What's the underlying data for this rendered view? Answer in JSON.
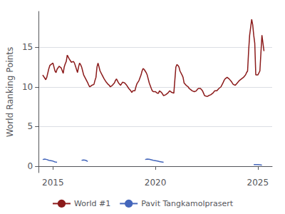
{
  "chart_data": {
    "type": "line",
    "ylabel": "World Ranking Points",
    "xlim": [
      2014.3,
      2025.7
    ],
    "ylim": [
      -0.8,
      19.5
    ],
    "xticks": [
      2015,
      2020,
      2025
    ],
    "yticks": [
      0,
      5,
      10,
      15
    ],
    "grid": true,
    "legend": "bottom",
    "series": [
      {
        "name": "World #1",
        "color": "#8b1a1a",
        "x": [
          2014.5,
          2014.6,
          2014.65,
          2014.7,
          2014.8,
          2014.85,
          2014.9,
          2015.0,
          2015.05,
          2015.1,
          2015.15,
          2015.2,
          2015.3,
          2015.4,
          2015.5,
          2015.55,
          2015.6,
          2015.65,
          2015.7,
          2015.8,
          2015.85,
          2015.9,
          2016.0,
          2016.05,
          2016.1,
          2016.15,
          2016.2,
          2016.25,
          2016.3,
          2016.35,
          2016.4,
          2016.45,
          2016.5,
          2016.6,
          2016.7,
          2016.75,
          2016.8,
          2016.85,
          2016.9,
          2017.0,
          2017.05,
          2017.1,
          2017.15,
          2017.2,
          2017.3,
          2017.4,
          2017.5,
          2017.6,
          2017.7,
          2017.75,
          2017.8,
          2017.9,
          2018.0,
          2018.05,
          2018.1,
          2018.2,
          2018.3,
          2018.35,
          2018.4,
          2018.5,
          2018.6,
          2018.7,
          2018.8,
          2018.85,
          2018.9,
          2019.0,
          2019.05,
          2019.1,
          2019.2,
          2019.3,
          2019.35,
          2019.4,
          2019.45,
          2019.5,
          2019.55,
          2019.6,
          2019.7,
          2019.8,
          2019.85,
          2019.9,
          2020.0,
          2020.05,
          2020.1,
          2020.15,
          2020.2,
          2020.3,
          2020.4,
          2020.5,
          2020.6,
          2020.7,
          2020.8,
          2020.9,
          2021.0,
          2021.05,
          2021.1,
          2021.15,
          2021.2,
          2021.3,
          2021.35,
          2021.4,
          2021.5,
          2021.6,
          2021.65,
          2021.7,
          2021.8,
          2021.9,
          2022.0,
          2022.05,
          2022.1,
          2022.2,
          2022.3,
          2022.35,
          2022.4,
          2022.5,
          2022.55,
          2022.6,
          2022.7,
          2022.8,
          2022.9,
          2023.0,
          2023.1,
          2023.2,
          2023.3,
          2023.35,
          2023.4,
          2023.5,
          2023.6,
          2023.7,
          2023.75,
          2023.8,
          2023.9,
          2024.0,
          2024.1,
          2024.2,
          2024.3,
          2024.4,
          2024.45,
          2024.5,
          2024.55,
          2024.6,
          2024.65,
          2024.7,
          2024.75,
          2024.8,
          2024.85,
          2024.9,
          2025.0,
          2025.1,
          2025.2,
          2025.3
        ],
        "values": [
          11.5,
          11.1,
          10.9,
          11.2,
          12.3,
          12.7,
          12.8,
          13.0,
          12.5,
          12.0,
          11.8,
          12.2,
          12.6,
          12.4,
          11.7,
          12.5,
          12.9,
          13.2,
          14.0,
          13.5,
          13.3,
          13.1,
          13.2,
          13.0,
          12.6,
          12.2,
          11.8,
          12.5,
          13.0,
          12.8,
          12.5,
          12.0,
          11.5,
          11.0,
          10.5,
          10.2,
          10.0,
          10.1,
          10.2,
          10.3,
          10.8,
          11.2,
          12.5,
          13.0,
          12.0,
          11.5,
          11.0,
          10.6,
          10.3,
          10.2,
          10.0,
          10.2,
          10.5,
          10.8,
          11.0,
          10.5,
          10.2,
          10.4,
          10.6,
          10.5,
          10.2,
          9.8,
          9.5,
          9.3,
          9.5,
          9.5,
          10.0,
          10.4,
          10.8,
          11.5,
          12.0,
          12.3,
          12.2,
          12.0,
          11.8,
          11.5,
          10.5,
          9.8,
          9.5,
          9.4,
          9.4,
          9.3,
          9.2,
          9.2,
          9.5,
          9.3,
          8.9,
          9.0,
          9.2,
          9.5,
          9.3,
          9.2,
          12.5,
          12.8,
          12.7,
          12.5,
          12.0,
          11.5,
          11.2,
          10.5,
          10.2,
          10.0,
          9.8,
          9.7,
          9.5,
          9.4,
          9.5,
          9.7,
          9.8,
          9.8,
          9.5,
          9.2,
          8.9,
          8.8,
          8.8,
          8.9,
          9.0,
          9.2,
          9.5,
          9.5,
          9.8,
          10.0,
          10.5,
          10.8,
          11.0,
          11.2,
          11.0,
          10.7,
          10.5,
          10.3,
          10.2,
          10.5,
          10.8,
          11.0,
          11.2,
          11.5,
          11.8,
          12.0,
          14.5,
          16.5,
          17.5,
          18.5,
          17.8,
          16.5,
          15.5,
          11.5,
          11.5,
          12.0,
          16.5,
          14.5
        ]
      },
      {
        "name": "Pavit Tangkamolprasert",
        "color": "#4466bb",
        "x": [
          2014.5,
          2014.6,
          2014.7,
          2014.8,
          2014.9,
          2015.0,
          2015.1,
          2015.2,
          null,
          2016.4,
          2016.5,
          2016.6,
          2016.7,
          null,
          2019.5,
          2019.6,
          2019.7,
          2019.8,
          2019.9,
          2020.0,
          2020.1,
          2020.2,
          2020.3,
          2020.4,
          null,
          2024.8,
          2024.9,
          2025.0,
          2025.1,
          2025.2
        ],
        "values": [
          0.85,
          0.9,
          0.85,
          0.75,
          0.7,
          0.65,
          0.55,
          0.5,
          null,
          0.75,
          0.8,
          0.75,
          0.6,
          null,
          0.85,
          0.9,
          0.88,
          0.82,
          0.75,
          0.7,
          0.65,
          0.6,
          0.55,
          0.5,
          null,
          0.2,
          0.22,
          0.2,
          0.18,
          0.15
        ]
      }
    ]
  }
}
